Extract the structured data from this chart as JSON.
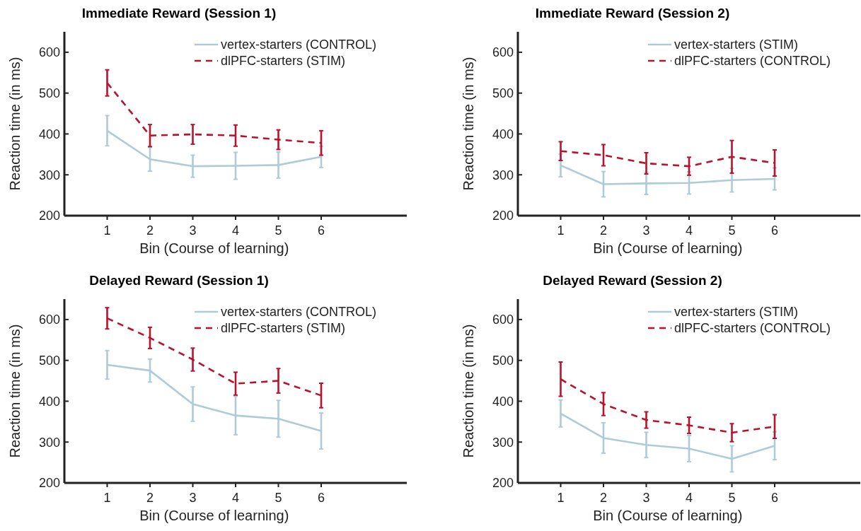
{
  "chart_data": [
    {
      "type": "line",
      "title": "Immediate Reward (Session 1)",
      "xlabel": "Bin (Course of learning)",
      "ylabel": "Reaction time (in ms)",
      "x": [
        1,
        2,
        3,
        4,
        5,
        6
      ],
      "xlim": [
        0,
        8
      ],
      "xticks": [
        1,
        2,
        3,
        4,
        5,
        6
      ],
      "ylim": [
        200,
        650
      ],
      "yticks": [
        200,
        300,
        400,
        500,
        600
      ],
      "legend": "top right",
      "series": [
        {
          "name": "vertex-starters (CONTROL)",
          "color": "#aecbd9",
          "line_style": "solid",
          "values": [
            408,
            338,
            321,
            322,
            324,
            344
          ],
          "errors": [
            37,
            29,
            27,
            33,
            32,
            26
          ]
        },
        {
          "name": "dlPFC-starters (STIM)",
          "color": "#b7132f",
          "line_style": "dashed",
          "values": [
            525,
            396,
            399,
            396,
            386,
            378
          ],
          "errors": [
            32,
            27,
            24,
            26,
            24,
            30
          ]
        }
      ]
    },
    {
      "type": "line",
      "title": "Immediate Reward (Session 2)",
      "xlabel": "Bin (Course of learning)",
      "ylabel": "Reaction time (in ms)",
      "x": [
        1,
        2,
        3,
        4,
        5,
        6
      ],
      "xlim": [
        0,
        8
      ],
      "xticks": [
        1,
        2,
        3,
        4,
        5,
        6
      ],
      "ylim": [
        200,
        650
      ],
      "yticks": [
        200,
        300,
        400,
        500,
        600
      ],
      "legend": "top right",
      "series": [
        {
          "name": "vertex-starters (STIM)",
          "color": "#aecbd9",
          "line_style": "solid",
          "values": [
            323,
            277,
            279,
            280,
            287,
            290
          ],
          "errors": [
            28,
            31,
            27,
            27,
            29,
            27
          ]
        },
        {
          "name": "dlPFC-starters (CONTROL)",
          "color": "#b7132f",
          "line_style": "dashed",
          "values": [
            358,
            348,
            328,
            321,
            344,
            329
          ],
          "errors": [
            23,
            26,
            26,
            22,
            40,
            32
          ]
        }
      ]
    },
    {
      "type": "line",
      "title": "Delayed Reward (Session 1)",
      "xlabel": "Bin (Course of learning)",
      "ylabel": "Reaction time (in ms)",
      "x": [
        1,
        2,
        3,
        4,
        5,
        6
      ],
      "xlim": [
        0,
        8
      ],
      "xticks": [
        1,
        2,
        3,
        4,
        5,
        6
      ],
      "ylim": [
        200,
        650
      ],
      "yticks": [
        200,
        300,
        400,
        500,
        600
      ],
      "legend": "top right",
      "series": [
        {
          "name": "vertex-starters (CONTROL)",
          "color": "#aecbd9",
          "line_style": "solid",
          "values": [
            489,
            475,
            393,
            365,
            357,
            327
          ],
          "errors": [
            35,
            28,
            42,
            47,
            45,
            44
          ]
        },
        {
          "name": "dlPFC-starters (STIM)",
          "color": "#b7132f",
          "line_style": "dashed",
          "values": [
            603,
            555,
            502,
            443,
            450,
            414
          ],
          "errors": [
            26,
            26,
            28,
            28,
            30,
            30
          ]
        }
      ]
    },
    {
      "type": "line",
      "title": "Delayed Reward (Session 2)",
      "xlabel": "Bin (Course of learning)",
      "ylabel": "Reaction time (in ms)",
      "x": [
        1,
        2,
        3,
        4,
        5,
        6
      ],
      "xlim": [
        0,
        8
      ],
      "xticks": [
        1,
        2,
        3,
        4,
        5,
        6
      ],
      "ylim": [
        200,
        650
      ],
      "yticks": [
        200,
        300,
        400,
        500,
        600
      ],
      "legend": "top right",
      "series": [
        {
          "name": "vertex-starters (STIM)",
          "color": "#aecbd9",
          "line_style": "solid",
          "values": [
            370,
            310,
            293,
            284,
            259,
            291
          ],
          "errors": [
            33,
            37,
            31,
            32,
            32,
            34
          ]
        },
        {
          "name": "dlPFC-starters (CONTROL)",
          "color": "#b7132f",
          "line_style": "dashed",
          "values": [
            454,
            393,
            354,
            341,
            323,
            338
          ],
          "errors": [
            42,
            28,
            20,
            20,
            22,
            29
          ]
        }
      ]
    }
  ]
}
